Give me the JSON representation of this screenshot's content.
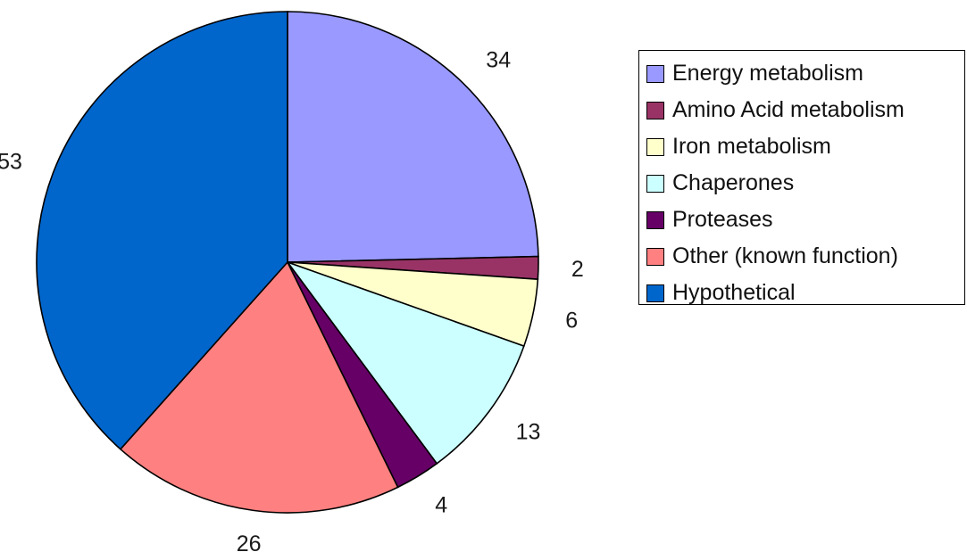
{
  "chart_data": {
    "type": "pie",
    "title": "",
    "start": "12 o'clock",
    "direction": "clockwise",
    "legend_position": "right",
    "slices": [
      {
        "label": "Energy metabolism",
        "value": 34,
        "color": "#9999FF"
      },
      {
        "label": "Amino Acid metabolism",
        "value": 2,
        "color": "#993366"
      },
      {
        "label": "Iron metabolism",
        "value": 6,
        "color": "#FFFFCC"
      },
      {
        "label": "Chaperones",
        "value": 13,
        "color": "#CCFFFF"
      },
      {
        "label": "Proteases",
        "value": 4,
        "color": "#660066"
      },
      {
        "label": "Other (known function)",
        "value": 26,
        "color": "#FF8080"
      },
      {
        "label": "Hypothetical",
        "value": 53,
        "color": "#0066CC"
      }
    ]
  }
}
